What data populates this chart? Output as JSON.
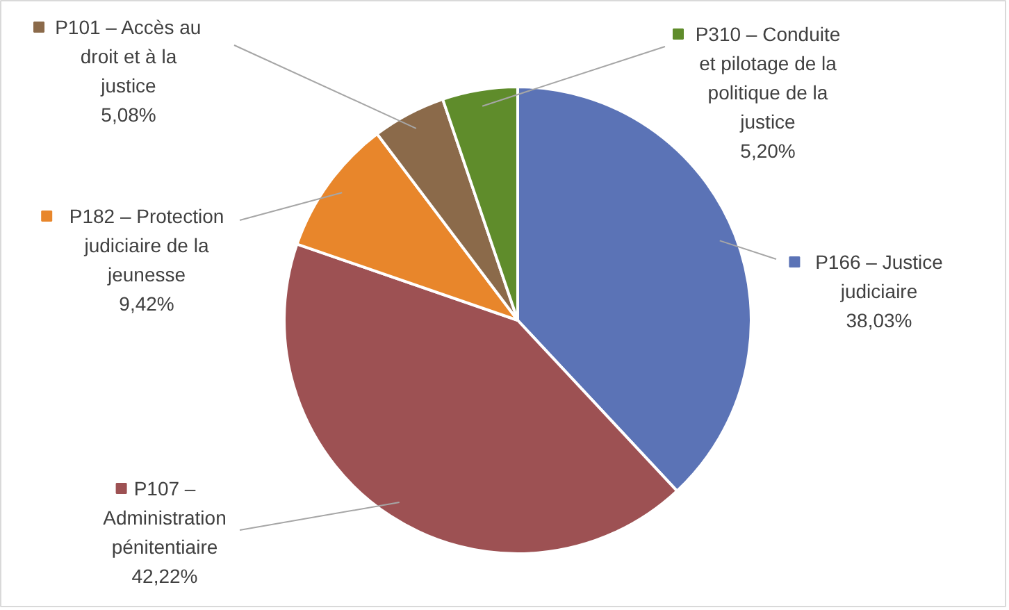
{
  "chart_data": {
    "type": "pie",
    "categories": [
      "P166 – Justice judiciaire",
      "P107 – Administration pénitentiaire",
      "P182 – Protection judiciaire de la jeunesse",
      "P101 – Accès au droit et à la justice",
      "P310 – Conduite et pilotage de la politique de la justice"
    ],
    "values": [
      38.03,
      42.22,
      9.42,
      5.08,
      5.2
    ],
    "colors": [
      "#5b73b6",
      "#9d5153",
      "#e8862b",
      "#8b6a4a",
      "#5f8c2b"
    ],
    "legend": "left",
    "value_labels": [
      "38,03%",
      "42,22%",
      "9,42%",
      "5,08%",
      "5,20%"
    ]
  }
}
